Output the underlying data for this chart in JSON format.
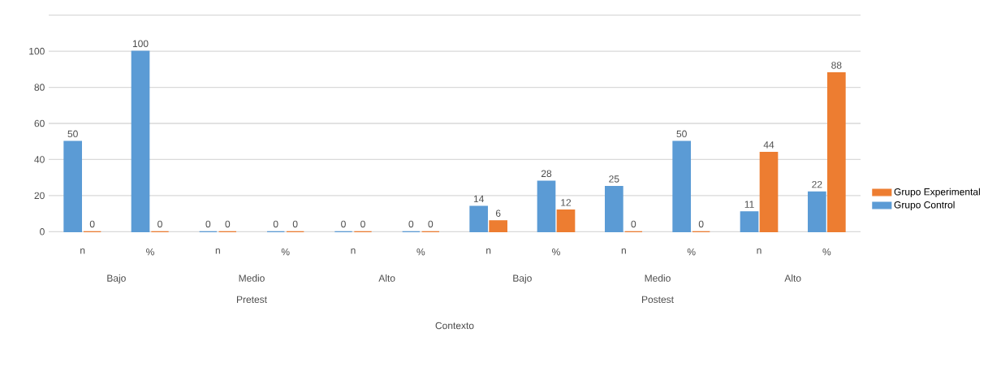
{
  "chart_data": {
    "type": "bar",
    "categories": [
      "n",
      "%",
      "n",
      "%",
      "n",
      "%",
      "n",
      "%",
      "n",
      "%",
      "n",
      "%"
    ],
    "series": [
      {
        "name": "Grupo Control",
        "color": "#5b9bd5",
        "values": [
          50,
          100,
          0,
          0,
          0,
          0,
          14,
          28,
          25,
          50,
          11,
          22
        ]
      },
      {
        "name": "Grupo Experimental",
        "color": "#ed7d31",
        "values": [
          0,
          0,
          0,
          0,
          0,
          0,
          6,
          12,
          0,
          0,
          44,
          88
        ]
      }
    ],
    "ylim": [
      0,
      120
    ],
    "yticks": [
      0,
      20,
      40,
      60,
      80,
      100,
      {
        "value": 120,
        "label": null
      }
    ],
    "grid": "y",
    "legend": "right",
    "data_labels": true,
    "annotations": [
      "Bajo",
      "Medio",
      "Alto",
      "Bajo",
      "Medio",
      "Alto",
      "Pretest",
      "Postest",
      "Contexto"
    ]
  }
}
